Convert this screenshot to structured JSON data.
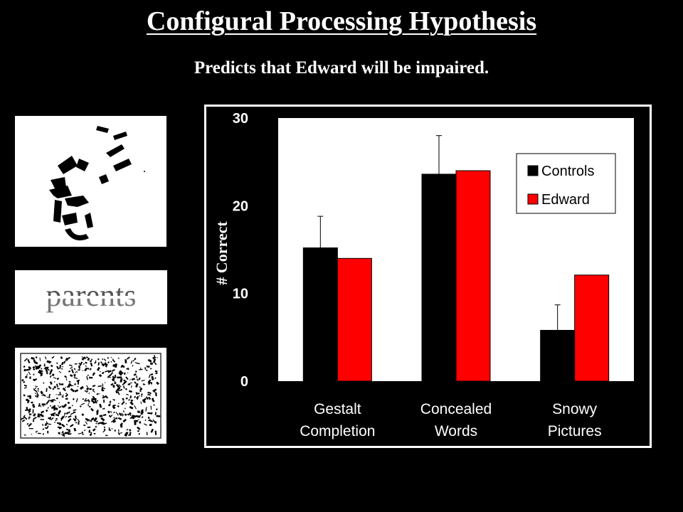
{
  "title": "Configural Processing Hypothesis",
  "subtitle": "Predicts that Edward will be impaired.",
  "thumbnails": {
    "concealed_word": "parents"
  },
  "chart_data": {
    "type": "bar",
    "categories": [
      [
        "Gestalt",
        "Completion"
      ],
      [
        "Concealed",
        "Words"
      ],
      [
        "Snowy",
        "Pictures"
      ]
    ],
    "series": [
      {
        "name": "Controls",
        "values": [
          15.2,
          23.6,
          5.8
        ],
        "error": [
          3.6,
          4.4,
          2.9
        ],
        "color": "#000000"
      },
      {
        "name": "Edward",
        "values": [
          14.0,
          24.0,
          12.1
        ],
        "color": "#ff0000"
      }
    ],
    "ylabel": "# Correct",
    "ylim": [
      0,
      30
    ],
    "yticks": [
      0,
      10,
      20,
      30
    ],
    "grid": false,
    "legend_position": "top-right",
    "plot_background": "#ffffff"
  }
}
